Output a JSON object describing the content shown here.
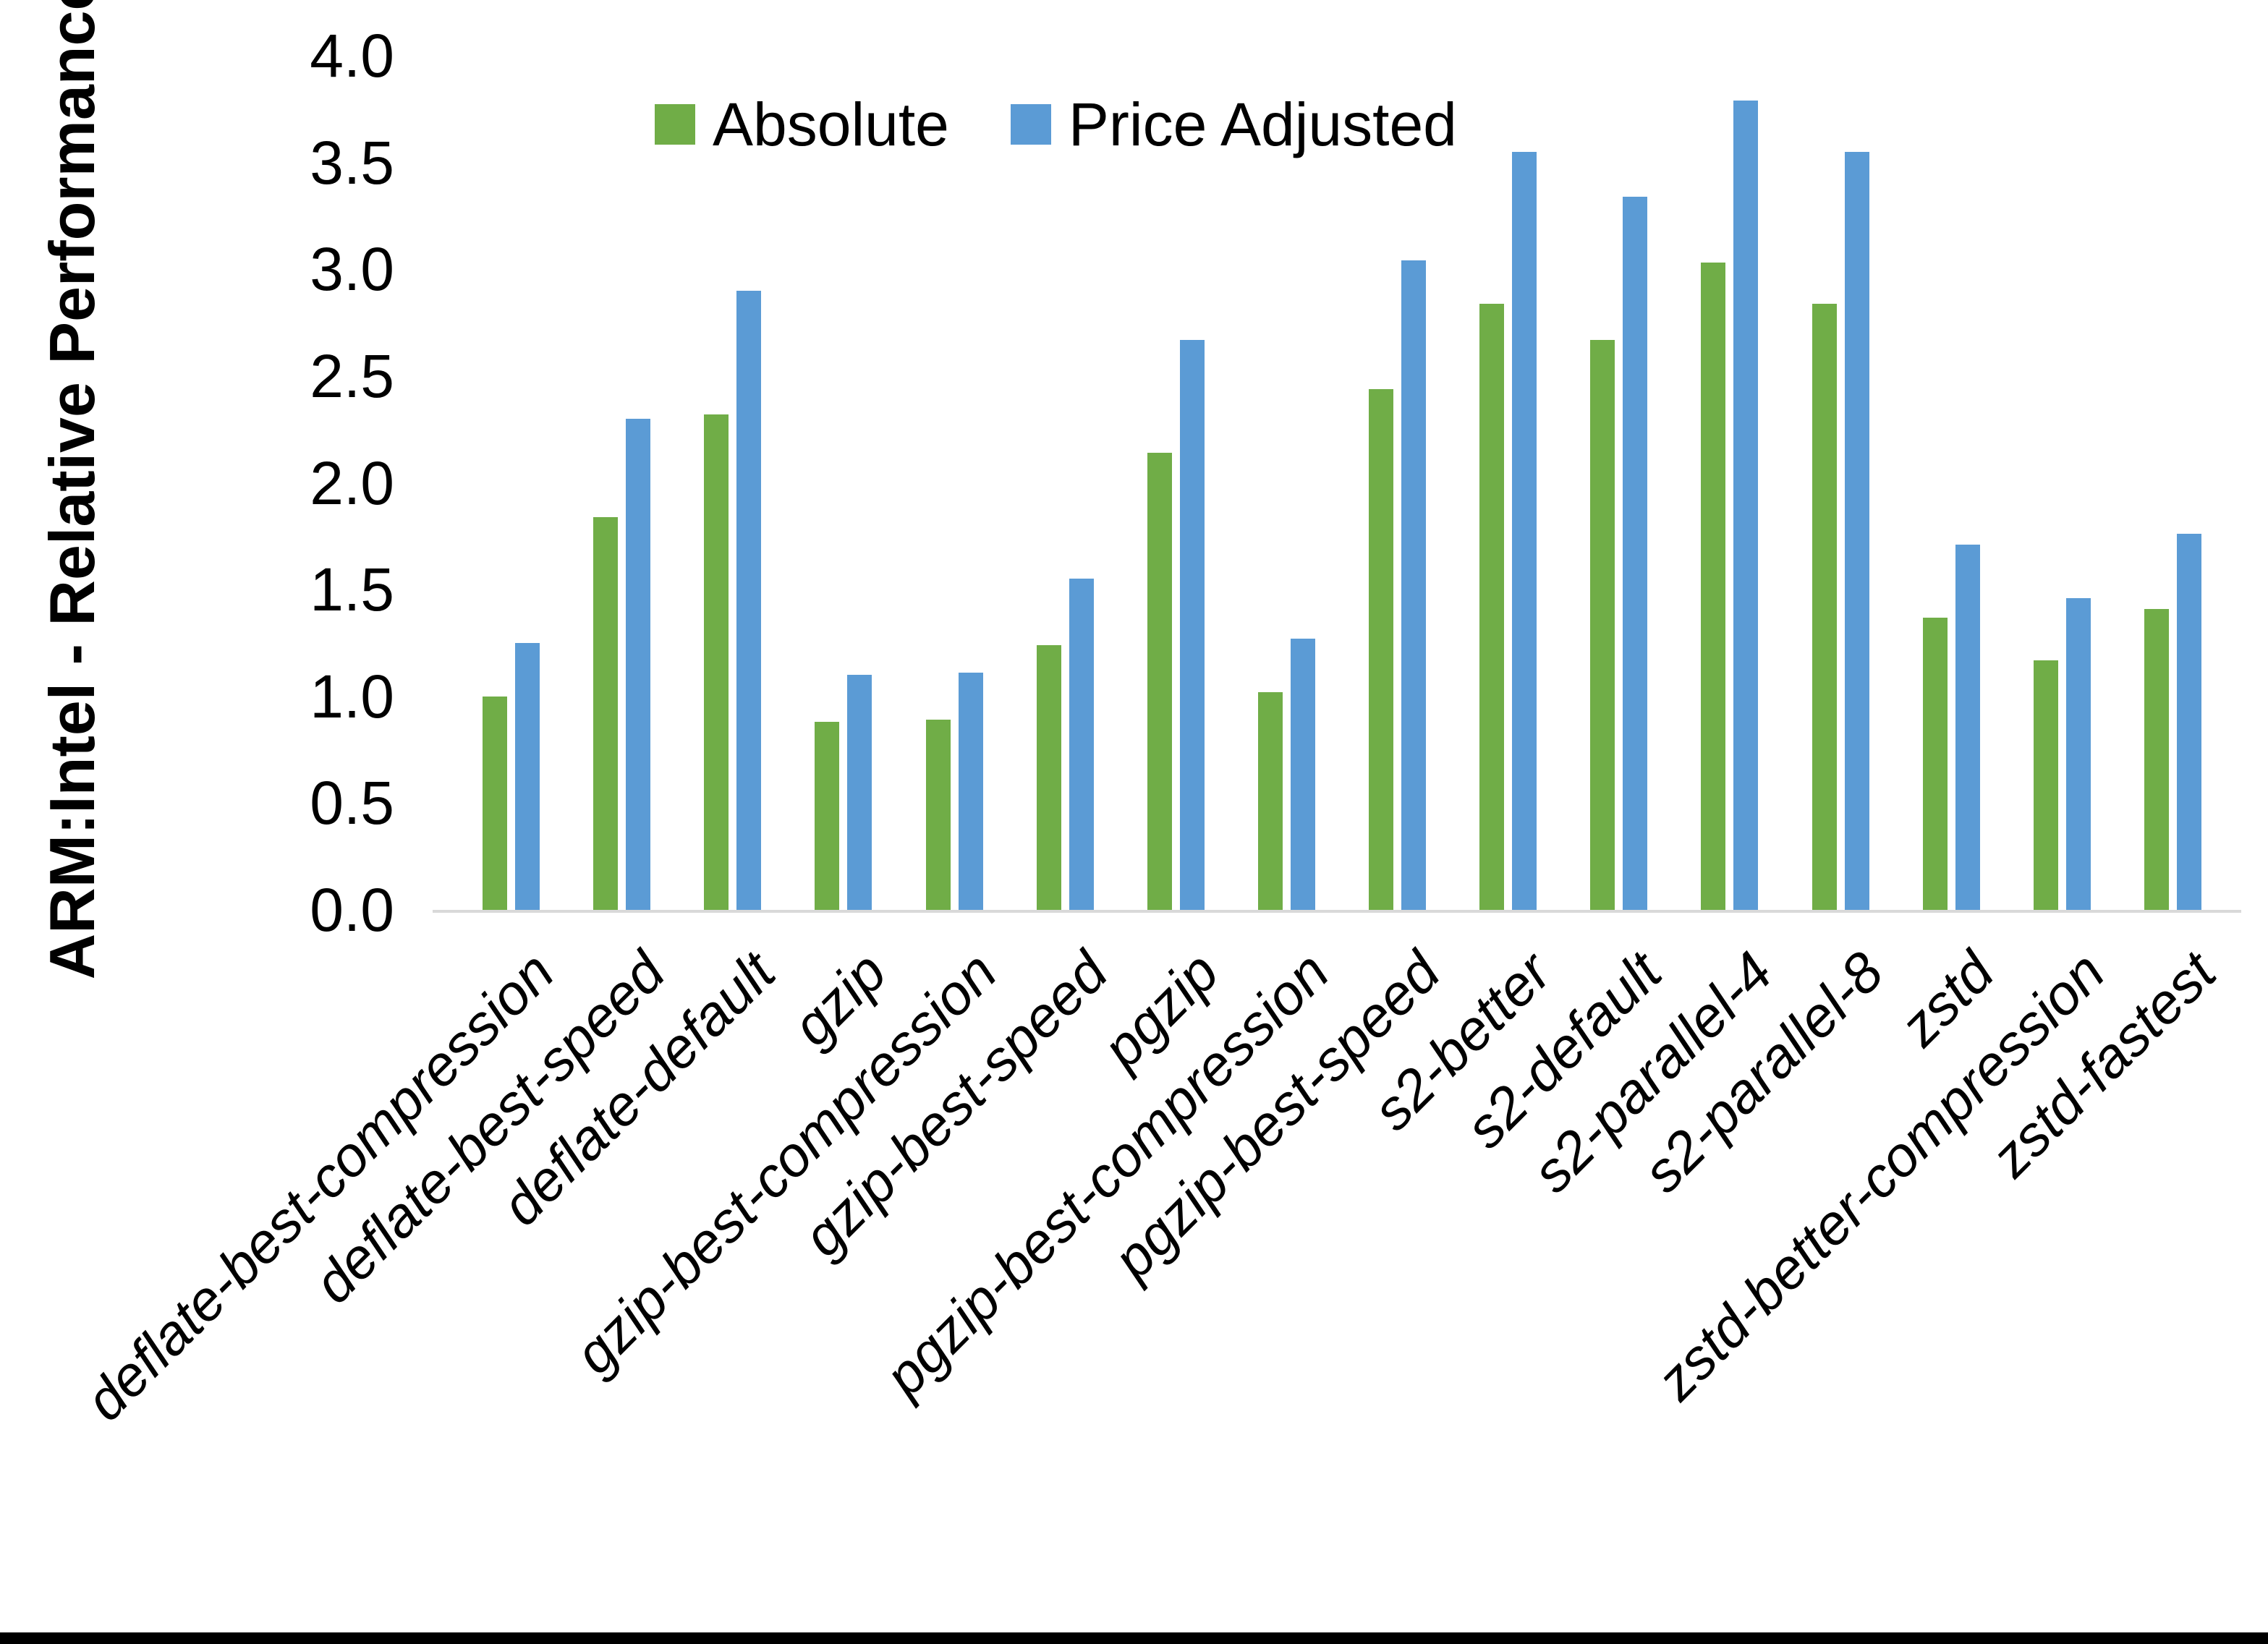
{
  "chart_data": {
    "type": "bar",
    "title": "",
    "xlabel": "",
    "ylabel": "ARM:Intel - Relative Performance",
    "ylim": [
      0,
      4
    ],
    "ytick_labels": [
      "0.0",
      "0.5",
      "1.0",
      "1.5",
      "2.0",
      "2.5",
      "3.0",
      "3.5",
      "4.0"
    ],
    "grid": false,
    "legend_position": "top-center",
    "categories": [
      "deflate-best-compression",
      "deflate-best-speed",
      "deflate-default",
      "gzip",
      "gzip-best-compression",
      "gzip-best-speed",
      "pgzip",
      "pgzip-best-compression",
      "pgzip-best-speed",
      "s2-better",
      "s2-default",
      "s2-parallel-4",
      "s2-parallel-8",
      "zstd",
      "zstd-better-compression",
      "zstd-fastest"
    ],
    "series": [
      {
        "name": "Absolute",
        "color": "#70AD47",
        "values": [
          1.0,
          1.84,
          2.32,
          0.88,
          0.89,
          1.24,
          2.14,
          1.02,
          2.44,
          2.84,
          2.67,
          3.03,
          2.84,
          1.37,
          1.17,
          1.41
        ]
      },
      {
        "name": "Price Adjusted",
        "color": "#5B9BD5",
        "values": [
          1.25,
          2.3,
          2.9,
          1.1,
          1.11,
          1.55,
          2.67,
          1.27,
          3.04,
          3.55,
          3.34,
          3.79,
          3.55,
          1.71,
          1.46,
          1.76
        ]
      }
    ],
    "colors": {
      "absolute": "#70AD47",
      "price_adjusted": "#5B9BD5",
      "axis_line": "#D9D9D9",
      "text": "#000000",
      "bottom_border": "#000000"
    }
  }
}
